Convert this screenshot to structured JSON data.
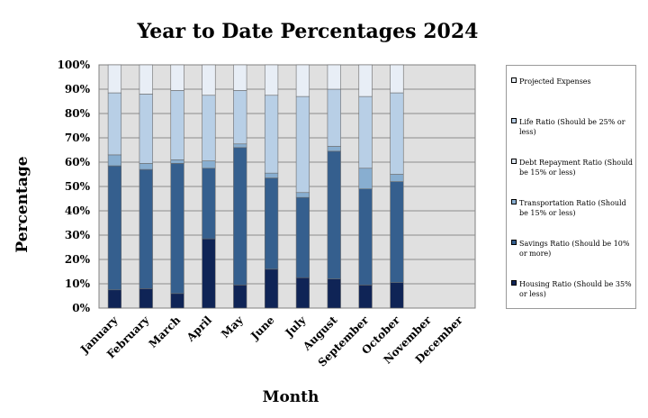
{
  "chart_data": {
    "type": "bar",
    "stacked": true,
    "title": "Year to Date Percentages 2024",
    "xlabel": "Month",
    "ylabel": "Percentage",
    "ylim": [
      0,
      100
    ],
    "yticks": [
      "0%",
      "10%",
      "20%",
      "30%",
      "40%",
      "50%",
      "60%",
      "70%",
      "80%",
      "90%",
      "100%"
    ],
    "grid": true,
    "legend_position": "right",
    "plot_background": "#e0e0e0",
    "categories": [
      "January",
      "February",
      "March",
      "April",
      "May",
      "June",
      "July",
      "August",
      "September",
      "October",
      "November",
      "December"
    ],
    "series": [
      {
        "name": "Housing Ratio (Should be 35% or less)",
        "color": "#0f2456",
        "values": [
          7.5,
          8,
          6,
          28.5,
          9.5,
          16,
          12.5,
          12,
          9.5,
          10.5,
          null,
          null
        ]
      },
      {
        "name": "Savings Ratio (Should be 10% or more)",
        "color": "#355f8e",
        "values": [
          51,
          49,
          53.5,
          29,
          56.5,
          37.5,
          33,
          52.5,
          39.5,
          41.5,
          null,
          null
        ]
      },
      {
        "name": "Transportation Ratio (Should be 15% or less)",
        "color": "#88aed0",
        "values": [
          4.5,
          2.5,
          1.5,
          3,
          1.5,
          2,
          2,
          2,
          8.5,
          3,
          null,
          null
        ]
      },
      {
        "name": "Debt Repayment Ratio (Should be 15% or less)",
        "color": "#dce6f1",
        "values": [
          0,
          0,
          0,
          0,
          0,
          0,
          0,
          0,
          0,
          0,
          null,
          null
        ]
      },
      {
        "name": "Life Ratio (Should be 25% or less)",
        "color": "#b8cfe6",
        "values": [
          25.5,
          28.5,
          28.5,
          27,
          22,
          32,
          39.5,
          23.5,
          29.5,
          33.5,
          null,
          null
        ]
      },
      {
        "name": "Projected Expenses",
        "color": "#e8eef6",
        "values": [
          11.5,
          12,
          10.5,
          12.5,
          10.5,
          12.5,
          13,
          10,
          13,
          11.5,
          null,
          null
        ]
      }
    ]
  }
}
